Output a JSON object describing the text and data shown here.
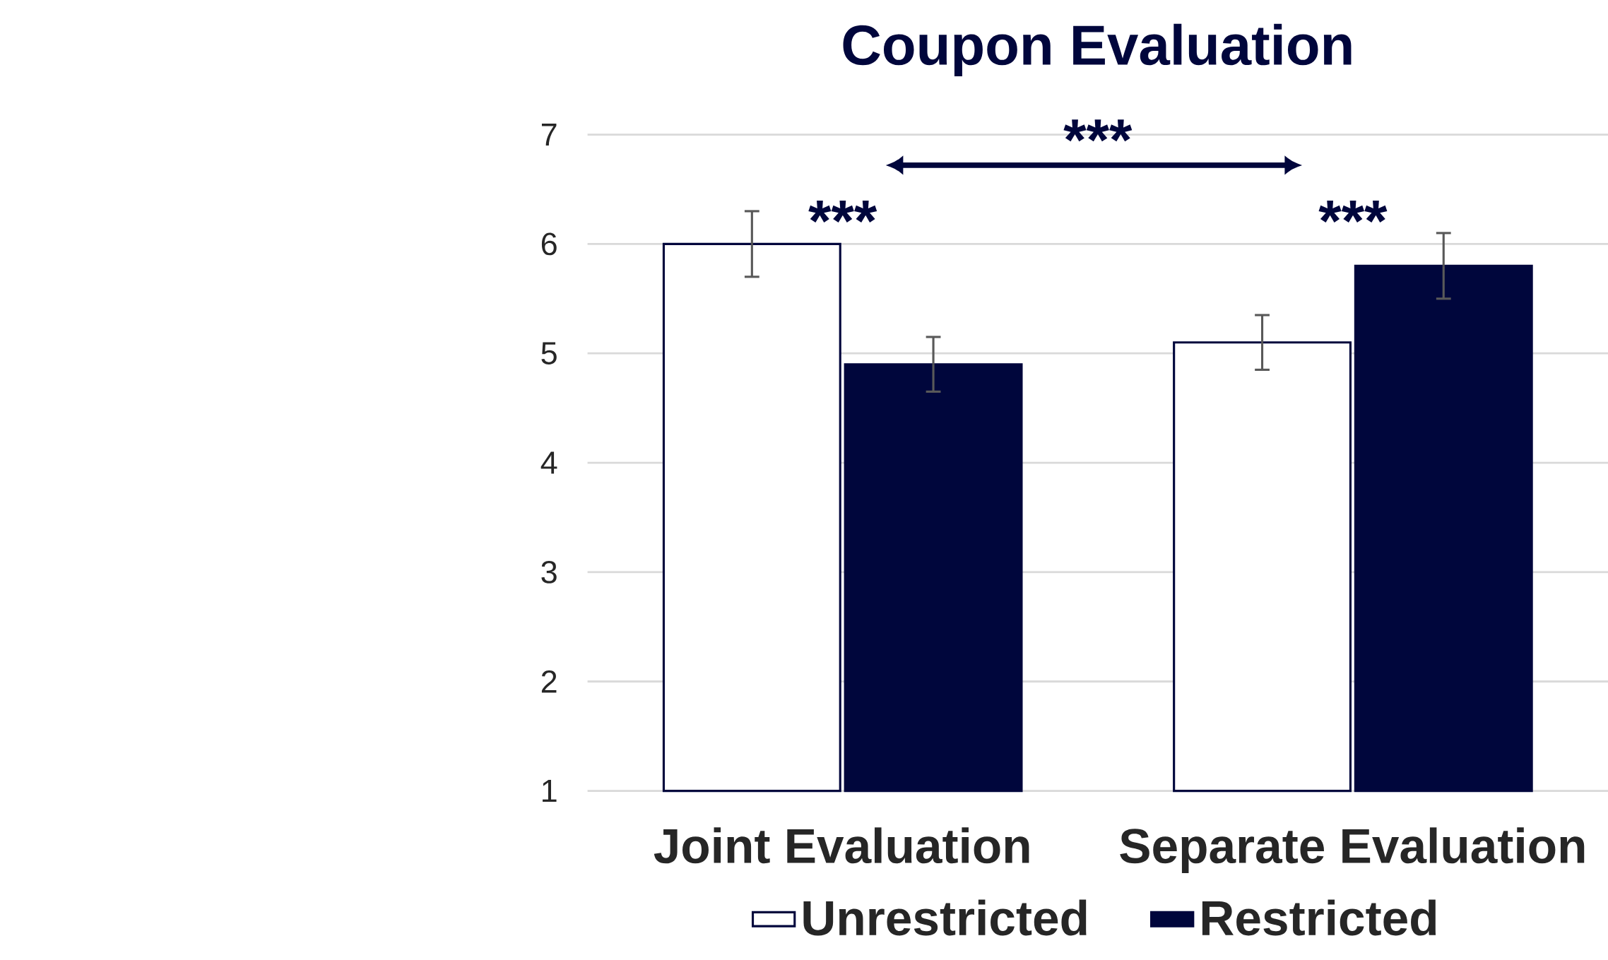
{
  "chart_data": {
    "type": "bar",
    "title": "Coupon Evaluation",
    "categories": [
      "Joint Evaluation",
      "Separate Evaluation"
    ],
    "series": [
      {
        "name": "Unrestricted",
        "color": "#ffffff",
        "values": [
          6.0,
          5.1
        ],
        "errors": [
          0.3,
          0.25
        ]
      },
      {
        "name": "Restricted",
        "color": "#00063c",
        "values": [
          4.9,
          5.8
        ],
        "errors": [
          0.25,
          0.3
        ]
      }
    ],
    "ylim": [
      1,
      7
    ],
    "yticks": [
      1,
      2,
      3,
      4,
      5,
      6,
      7
    ],
    "grid": "y",
    "legend": "bottom",
    "annotations": [
      "***",
      "***",
      "***"
    ]
  }
}
